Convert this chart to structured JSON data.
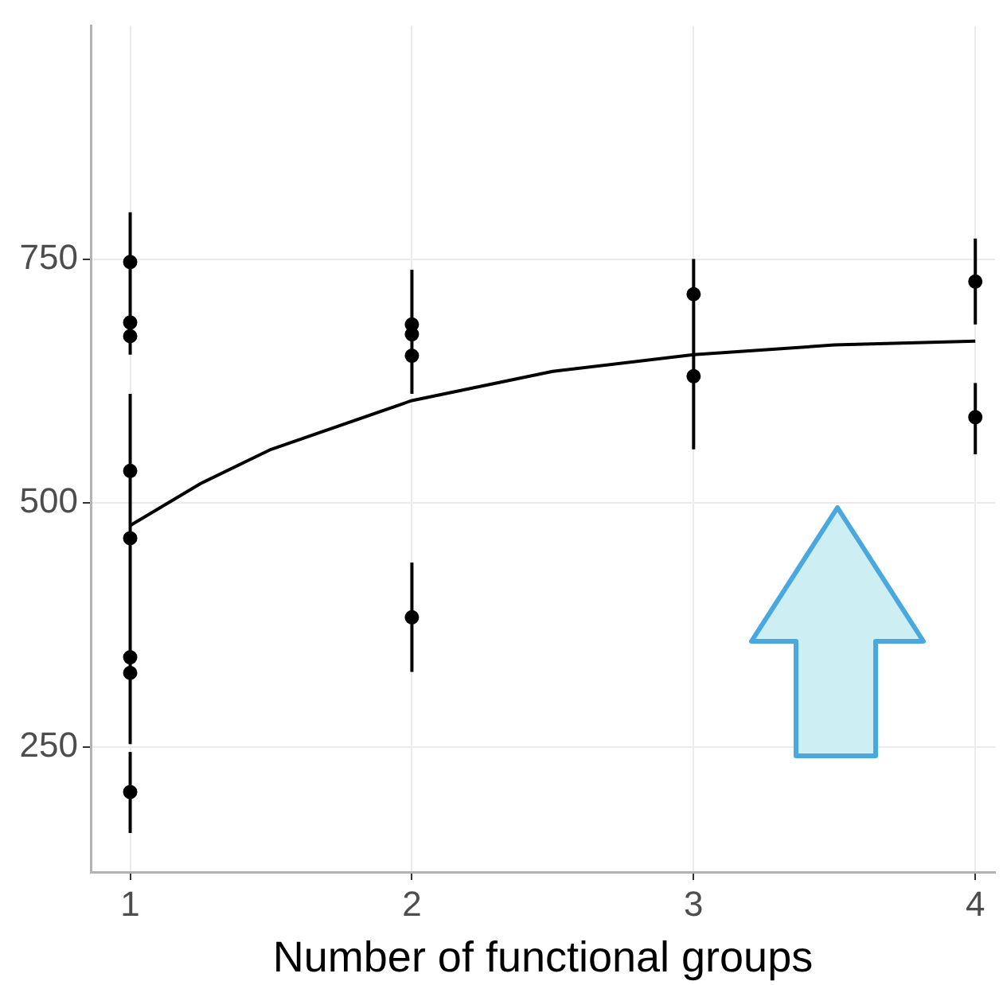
{
  "chart_data": {
    "type": "scatter",
    "xlabel": "Number of functional groups",
    "xlim": [
      0.86,
      4.07
    ],
    "xticks": [
      1,
      2,
      3,
      4
    ],
    "ylim": [
      122,
      989
    ],
    "yticks": [
      250,
      500,
      750
    ],
    "grid": true,
    "legend": false,
    "marker": "circle",
    "series": [
      {
        "color": "#000000",
        "x": [
          1,
          1,
          1,
          1,
          1,
          1,
          1,
          1,
          2,
          2,
          2,
          2,
          3,
          3,
          4,
          4
        ],
        "values": [
          747,
          685,
          671,
          533,
          464,
          342,
          326,
          204,
          683,
          673,
          651,
          383,
          714,
          630,
          727,
          588
        ],
        "errors": [
          null,
          [
            652,
            798
          ],
          null,
          null,
          [
            253,
            612
          ],
          null,
          null,
          [
            162,
            245
          ],
          null,
          [
            612,
            739
          ],
          null,
          [
            327,
            439
          ],
          null,
          [
            555,
            750
          ],
          [
            683,
            771
          ],
          [
            550,
            623
          ]
        ]
      },
      {
        "type": "line",
        "color": "#000000",
        "x": [
          1,
          1.25,
          1.5,
          2,
          2.5,
          3,
          3.5,
          4
        ],
        "values": [
          477,
          520,
          555,
          605,
          635,
          652,
          662,
          666
        ],
        "marker": "none"
      }
    ]
  }
}
